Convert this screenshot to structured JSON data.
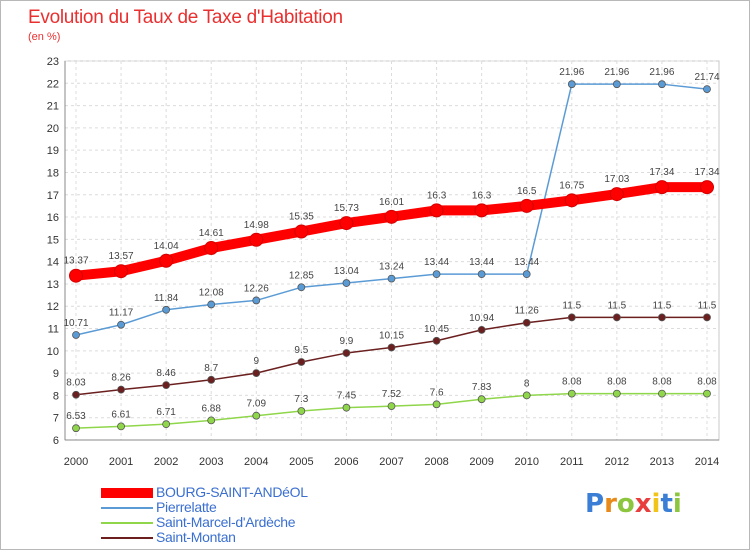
{
  "chart_data": {
    "type": "line",
    "title": "Evolution du Taux de Taxe d'Habitation",
    "subtitle": "(en %)",
    "x": [
      2000,
      2001,
      2002,
      2003,
      2004,
      2005,
      2006,
      2007,
      2008,
      2009,
      2010,
      2011,
      2012,
      2013,
      2014
    ],
    "ylim": [
      6,
      23
    ],
    "yticks": [
      6,
      7,
      8,
      9,
      10,
      11,
      12,
      13,
      14,
      15,
      16,
      17,
      18,
      19,
      20,
      21,
      22,
      23
    ],
    "grid": true,
    "legend_position": "bottom-left",
    "series": [
      {
        "name": "BOURG-SAINT-ANDéOL",
        "color": "#ff0000",
        "values": [
          13.37,
          13.57,
          14.04,
          14.61,
          14.98,
          15.35,
          15.73,
          16.01,
          16.3,
          16.3,
          16.5,
          16.75,
          17.03,
          17.34,
          17.34
        ],
        "labels": [
          "13.37",
          "13.57",
          "14.04",
          "14.61",
          "14.98",
          "15.35",
          "15.73",
          "16.01",
          "16.3",
          "16.3",
          "16.5",
          "16.75",
          "17.03",
          "17.34",
          "17.34"
        ]
      },
      {
        "name": "Pierrelatte",
        "color": "#5b9bd5",
        "values": [
          10.71,
          11.17,
          11.84,
          12.08,
          12.26,
          12.85,
          13.04,
          13.24,
          13.44,
          13.44,
          13.44,
          21.96,
          21.96,
          21.96,
          21.74
        ],
        "labels": [
          "10.71",
          "11.17",
          "11.84",
          "12.08",
          "12.26",
          "12.85",
          "13.04",
          "13.24",
          "13.44",
          "13.44",
          "13.44",
          "21.96",
          "21.96",
          "21.96",
          "21.74"
        ]
      },
      {
        "name": "Saint-Marcel-d'Ardèche",
        "color": "#8fd64a",
        "values": [
          6.53,
          6.61,
          6.71,
          6.88,
          7.09,
          7.3,
          7.45,
          7.52,
          7.6,
          7.83,
          8,
          8.08,
          8.08,
          8.08,
          8.08
        ],
        "labels": [
          "6.53",
          "6.61",
          "6.71",
          "6.88",
          "7.09",
          "7.3",
          "7.45",
          "7.52",
          "7.6",
          "7.83",
          "8",
          "8.08",
          "8.08",
          "8.08",
          "8.08"
        ]
      },
      {
        "name": "Saint-Montan",
        "color": "#6b1f1f",
        "values": [
          8.03,
          8.26,
          8.46,
          8.7,
          9,
          9.5,
          9.9,
          10.15,
          10.45,
          10.94,
          11.26,
          11.5,
          11.5,
          11.5,
          11.5
        ],
        "labels": [
          "8.03",
          "8.26",
          "8.46",
          "8.7",
          "9",
          "9.5",
          "9.9",
          "10.15",
          "10.45",
          "10.94",
          "11.26",
          "11.5",
          "11.5",
          "11.5",
          "11.5"
        ]
      }
    ]
  },
  "logo": {
    "text": [
      "P",
      "r",
      "o",
      "x",
      "i",
      "t",
      "i"
    ],
    "colors": [
      "#3a7fd5",
      "#e88a1a",
      "#8cc63f",
      "#e83e3e",
      "#f0c419",
      "#3a7fd5",
      "#8cc63f"
    ]
  }
}
